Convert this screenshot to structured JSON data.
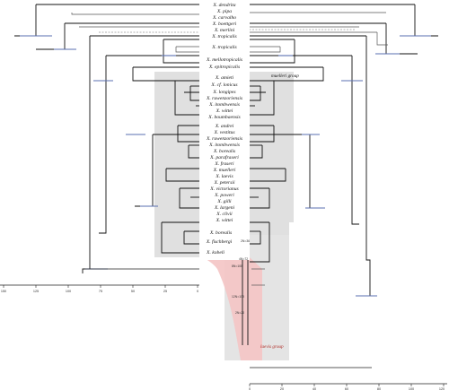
{
  "taxa_top": [
    "X. dendrita",
    "X. pipa",
    "X. carvalho",
    "X. boettgeri",
    "X. merlini",
    "X. tropicalis"
  ],
  "taxa_mid": [
    "X. tropicalis",
    "X. mellotropicalis",
    "X. epitropicalis"
  ],
  "group_muel": "muelleri group",
  "taxa_muel": [
    "X. amieti",
    "X. cf. lonicus",
    "X. longipes",
    "X. ruwenzoriensis",
    "X. itombwensis",
    "X. wittei",
    "X. boumbaensis"
  ],
  "taxa_laevis": [
    "X. andrei",
    "X. vestitus",
    "X. ruwenzoriensis",
    "X. itombwensis",
    "X. borealis",
    "X. parafraseri",
    "X. fraseri",
    "X. muelleri",
    "X. laevis",
    "X. petersii",
    "X. victorianus",
    "X. poweri",
    "X. gilli",
    "X. largeni",
    "X. clivii",
    "X. wittei"
  ],
  "taxa_lower": [
    "X. borealis",
    "X. fischbergi",
    "X. kobeli"
  ],
  "group_laevis": "laevis group",
  "node_labels": [
    "2N=36",
    "4N=72",
    "8N=108",
    "12N=108",
    "2N=20"
  ],
  "axis_left_ticks": [
    "150",
    "125",
    "100",
    "75",
    "50",
    "25",
    "0"
  ],
  "axis_right_ticks": [
    "0",
    "20",
    "40",
    "60",
    "80",
    "100",
    "120"
  ],
  "ci_color": "#5a6fb0",
  "highlight_gray": "#d9d9d9",
  "highlight_red": "#f3c1c1"
}
